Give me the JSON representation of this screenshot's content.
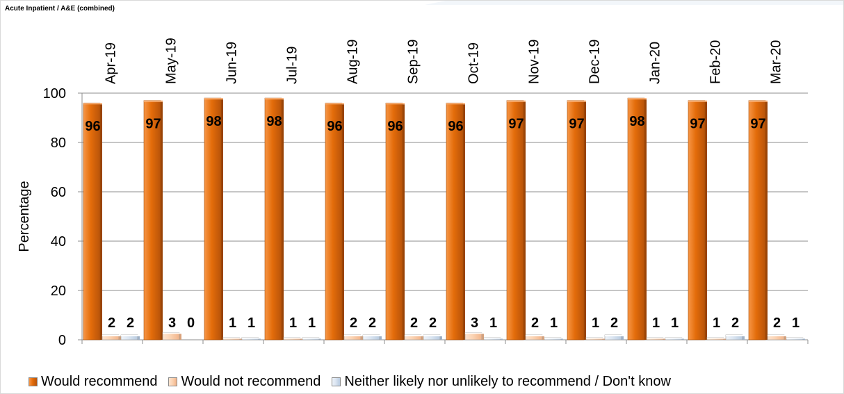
{
  "chart_data": {
    "type": "bar",
    "title": "Acute Inpatient / A&E (combined)",
    "xlabel": "",
    "ylabel": "Percentage",
    "ylim": [
      0,
      100
    ],
    "yticks": [
      0,
      20,
      40,
      60,
      80,
      100
    ],
    "grid": true,
    "legend_position": "bottom",
    "categories": [
      "Apr-19",
      "May-19",
      "Jun-19",
      "Jul-19",
      "Aug-19",
      "Sep-19",
      "Oct-19",
      "Nov-19",
      "Dec-19",
      "Jan-20",
      "Feb-20",
      "Mar-20"
    ],
    "series": [
      {
        "name": "Would recommend",
        "color": "#e36c0a",
        "values": [
          96,
          97,
          98,
          98,
          96,
          96,
          96,
          97,
          97,
          98,
          97,
          97
        ]
      },
      {
        "name": "Would not recommend",
        "color": "#fbd4b4",
        "values": [
          2,
          3,
          1,
          1,
          2,
          2,
          3,
          2,
          1,
          1,
          1,
          2
        ]
      },
      {
        "name": "Neither likely nor unlikely to recommend / Don't know",
        "color": "#dbe5f1",
        "values": [
          2,
          0,
          1,
          1,
          2,
          2,
          1,
          1,
          2,
          1,
          2,
          1
        ]
      }
    ]
  }
}
